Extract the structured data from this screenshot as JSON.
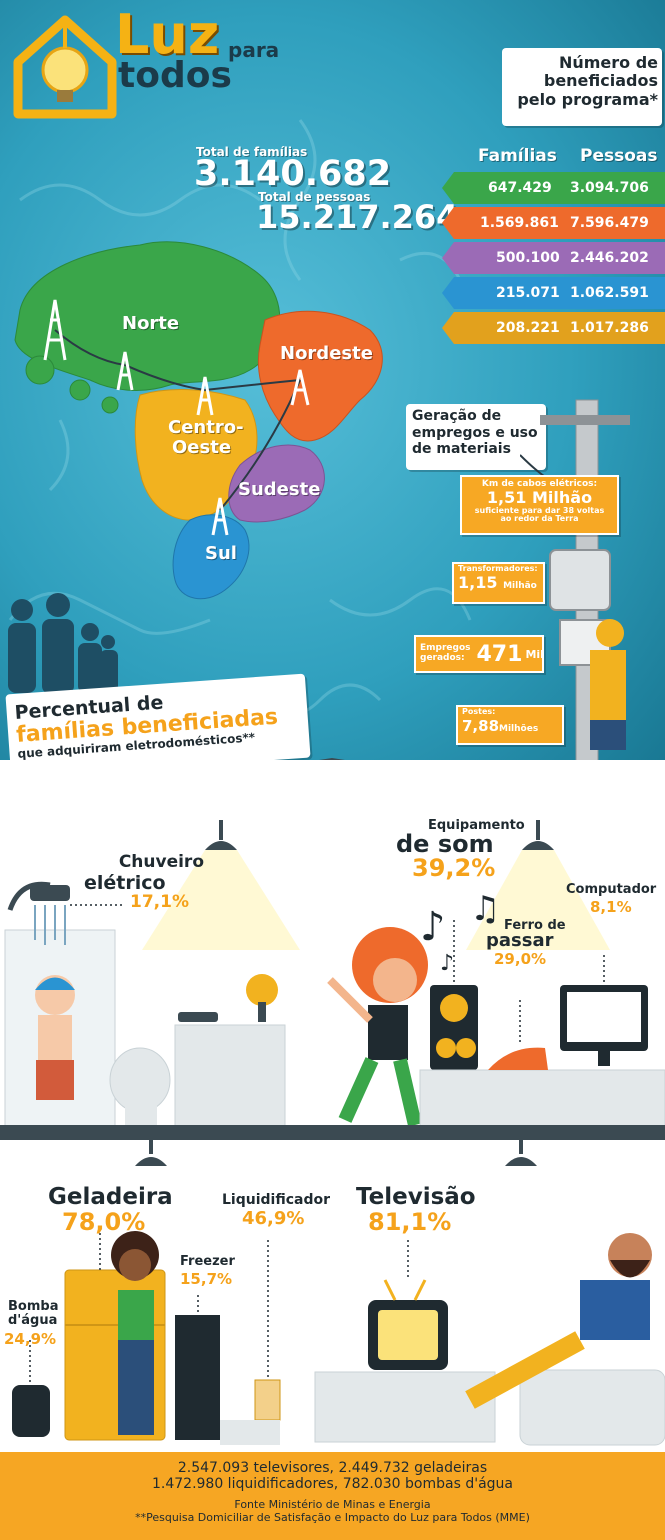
{
  "header": {
    "title_luz": "Luz",
    "title_para": "para",
    "title_todos": "todos"
  },
  "totals": {
    "familias_label": "Total de famílias",
    "familias_value": "3.140.682",
    "pessoas_label": "Total de pessoas",
    "pessoas_value": "15.217.264"
  },
  "beneficiados": {
    "title_line1": "Número de",
    "title_line2": "beneficiados",
    "title_line3": "pelo programa*",
    "col_familias": "Famílias",
    "col_pessoas": "Pessoas",
    "rows": [
      {
        "familias": "647.429",
        "pessoas": "3.094.706",
        "color": "#3aa64a"
      },
      {
        "familias": "1.569.861",
        "pessoas": "7.596.479",
        "color": "#ee6a2c"
      },
      {
        "familias": "500.100",
        "pessoas": "2.446.202",
        "color": "#9b6bb6"
      },
      {
        "familias": "215.071",
        "pessoas": "1.062.591",
        "color": "#2a94d2"
      },
      {
        "familias": "208.221",
        "pessoas": "1.017.286",
        "color": "#e2a11d"
      }
    ]
  },
  "regions": {
    "norte": "Norte",
    "nordeste": "Nordeste",
    "centro_oeste_1": "Centro-",
    "centro_oeste_2": "Oeste",
    "sudeste": "Sudeste",
    "sul": "Sul"
  },
  "geracao": {
    "title_line1": "Geração de",
    "title_line2": "empregos e uso",
    "title_line3": "de materiais",
    "cabos_label": "Km de cabos elétricos:",
    "cabos_value": "1,51",
    "cabos_unit": "Milhão",
    "cabos_note": "suficiente para dar 38 voltas ao redor da Terra",
    "transformadores_label": "Transformadores:",
    "transformadores_value": "1,15",
    "transformadores_unit": "Milhão",
    "empregos_label_1": "Empregos",
    "empregos_label_2": "gerados:",
    "empregos_value": "471",
    "empregos_unit": "Mil",
    "postes_label": "Postes:",
    "postes_value": "7,88",
    "postes_unit": "Milhões"
  },
  "percentual": {
    "line1": "Percentual de",
    "line2": "famílias beneficiadas",
    "line3": "que adquiriram eletrodomésticos**"
  },
  "appliances": {
    "chuveiro_1": "Chuveiro",
    "chuveiro_2": "elétrico",
    "chuveiro_pct": "17,1%",
    "som_1": "Equipamento",
    "som_2": "de som",
    "som_pct": "39,2%",
    "computador": "Computador",
    "computador_pct": "8,1%",
    "ferro_1": "Ferro de",
    "ferro_2": "passar",
    "ferro_pct": "29,0%",
    "geladeira": "Geladeira",
    "geladeira_pct": "78,0%",
    "liquidificador": "Liquidificador",
    "liquidificador_pct": "46,9%",
    "televisao": "Televisão",
    "televisao_pct": "81,1%",
    "freezer": "Freezer",
    "freezer_pct": "15,7%",
    "bomba_1": "Bomba",
    "bomba_2": "d'água",
    "bomba_pct": "24,9%"
  },
  "footer": {
    "line1": "2.547.093 televisores, 2.449.732 geladeiras",
    "line2": "1.472.980 liquidificadores, 782.030 bombas d'água",
    "fonte": "Fonte Ministério de Minas e Energia",
    "pesquisa": "**Pesquisa Domiciliar de Satisfação e Impacto do Luz para Todos (MME)"
  }
}
